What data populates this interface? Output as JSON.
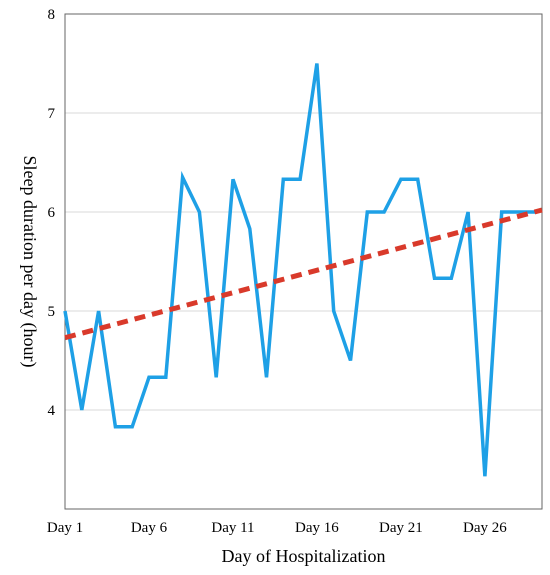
{
  "chart_data": {
    "type": "line",
    "xlabel": "Day of Hospitalization",
    "ylabel": "Sleep duration per day (hour)",
    "x": [
      1,
      2,
      3,
      4,
      5,
      6,
      7,
      8,
      9,
      10,
      11,
      12,
      13,
      14,
      15,
      16,
      17,
      18,
      19,
      20,
      21,
      22,
      23,
      24,
      25,
      26,
      27,
      28,
      29
    ],
    "x_tick_values": [
      1,
      6,
      11,
      16,
      21,
      26
    ],
    "x_tick_labels": [
      "Day 1",
      "Day 6",
      "Day 11",
      "Day 16",
      "Day 21",
      "Day 26"
    ],
    "xlim": [
      1,
      29.4
    ],
    "ylim": [
      3,
      8
    ],
    "y_ticks": [
      4,
      5,
      6,
      7,
      8
    ],
    "grid": "horizontal",
    "series": [
      {
        "color": "#1ea0e6",
        "style": "solid",
        "values": [
          5.0,
          4.0,
          5.0,
          3.83,
          3.83,
          4.33,
          4.33,
          6.35,
          6.0,
          4.33,
          6.33,
          5.83,
          4.33,
          6.33,
          6.33,
          7.5,
          5.0,
          4.5,
          6.0,
          6.0,
          6.33,
          6.33,
          5.33,
          5.33,
          6.0,
          3.33,
          6.0,
          6.0,
          6.0
        ]
      },
      {
        "color": "#d93a2b",
        "style": "dashed",
        "x": [
          1,
          29.4
        ],
        "values": [
          4.73,
          6.02
        ]
      }
    ]
  }
}
